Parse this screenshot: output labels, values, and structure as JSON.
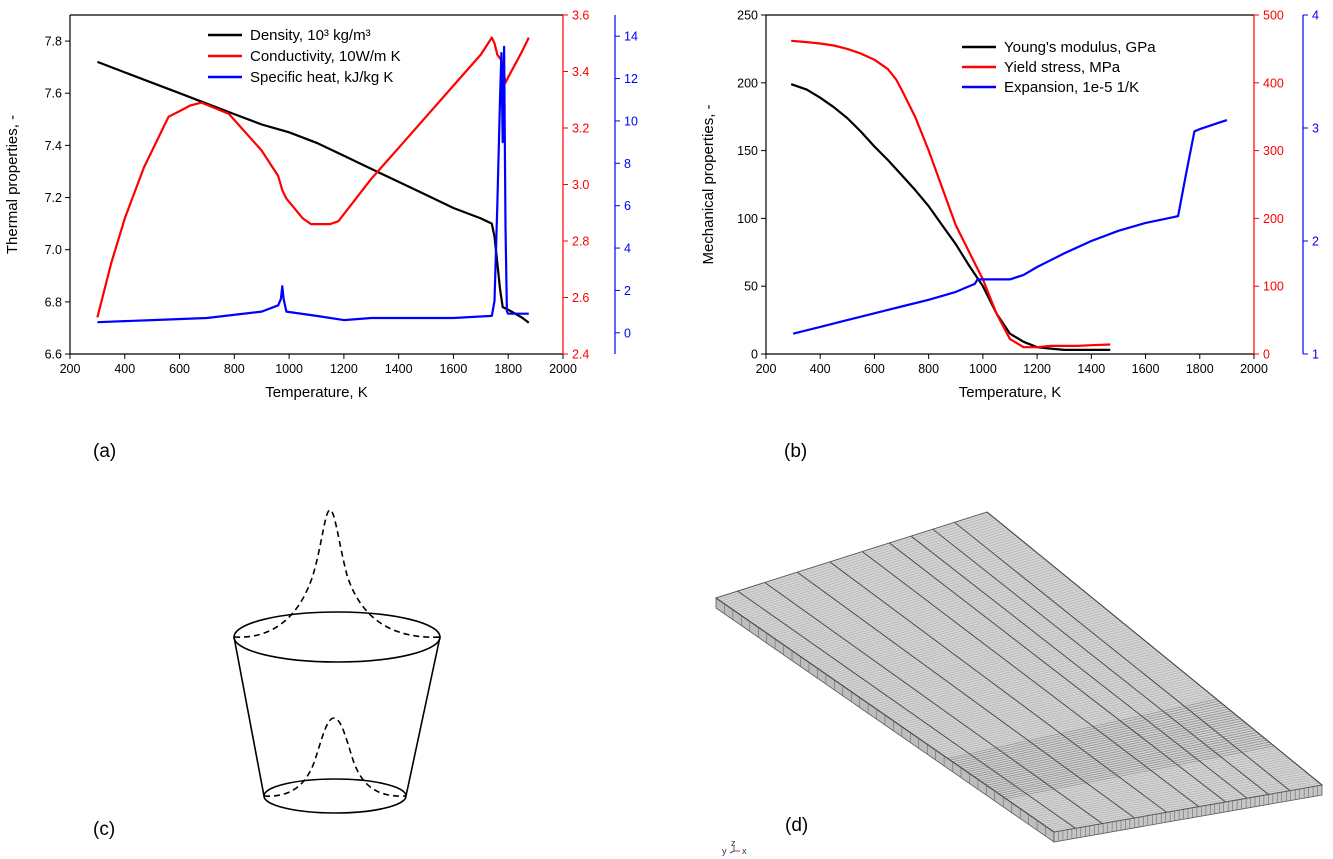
{
  "panels": {
    "a": "(a)",
    "b": "(b)",
    "c": "(c)",
    "d": "(d)"
  },
  "colors": {
    "black": "#000000",
    "red": "#ff0000",
    "blue": "#0000ff",
    "mesh_fill": "#d4d4d4",
    "mesh_line": "#5a5a5a"
  },
  "triad": {
    "y": "y",
    "z": "z",
    "x": "x"
  },
  "chart_data": [
    {
      "id": "a",
      "type": "line",
      "xlabel": "Temperature, K",
      "ylabel": "Thermal properties, -",
      "xlim": [
        200,
        2000
      ],
      "xticks": [
        200,
        400,
        600,
        800,
        1000,
        1200,
        1400,
        1600,
        1800,
        2000
      ],
      "axes": [
        {
          "side": "left",
          "color": "#000000",
          "lim": [
            6.6,
            7.9
          ],
          "ticks": [
            6.6,
            6.8,
            7.0,
            7.2,
            7.4,
            7.6,
            7.8
          ],
          "decimals": 1
        },
        {
          "side": "right",
          "color": "#ff0000",
          "lim": [
            2.4,
            3.6
          ],
          "ticks": [
            2.4,
            2.6,
            2.8,
            3.0,
            3.2,
            3.4,
            3.6
          ],
          "decimals": 1
        },
        {
          "side": "right2",
          "color": "#0000ff",
          "lim": [
            -1,
            15
          ],
          "ticks": [
            0,
            2,
            4,
            6,
            8,
            10,
            12,
            14
          ],
          "decimals": 0
        }
      ],
      "legend": {
        "position": "top-center"
      },
      "series": [
        {
          "name": "Density, 10³ kg/m³",
          "axis": 0,
          "color": "#000000",
          "x": [
            300,
            400,
            500,
            600,
            700,
            800,
            900,
            1000,
            1100,
            1200,
            1300,
            1400,
            1500,
            1600,
            1700,
            1740,
            1750,
            1760,
            1770,
            1780,
            1800,
            1850,
            1875
          ],
          "y": [
            7.72,
            7.68,
            7.64,
            7.6,
            7.56,
            7.52,
            7.48,
            7.45,
            7.41,
            7.36,
            7.31,
            7.26,
            7.21,
            7.16,
            7.12,
            7.1,
            7.05,
            6.95,
            6.85,
            6.78,
            6.77,
            6.74,
            6.72
          ]
        },
        {
          "name": "Conductivity, 10W/m K",
          "axis": 1,
          "color": "#ff0000",
          "x": [
            300,
            350,
            400,
            470,
            560,
            600,
            640,
            680,
            780,
            900,
            960,
            975,
            990,
            1050,
            1080,
            1150,
            1180,
            1300,
            1400,
            1500,
            1600,
            1700,
            1740,
            1750,
            1760,
            1775,
            1790,
            1800,
            1850,
            1875
          ],
          "y": [
            2.53,
            2.72,
            2.88,
            3.06,
            3.24,
            3.26,
            3.28,
            3.29,
            3.25,
            3.12,
            3.03,
            2.98,
            2.95,
            2.88,
            2.86,
            2.86,
            2.87,
            3.02,
            3.13,
            3.24,
            3.35,
            3.46,
            3.52,
            3.5,
            3.46,
            3.44,
            3.36,
            3.38,
            3.47,
            3.52
          ]
        },
        {
          "name": "Specific heat, kJ/kg K",
          "axis": 2,
          "color": "#0000ff",
          "x": [
            300,
            500,
            700,
            900,
            960,
            970,
            975,
            980,
            990,
            1100,
            1200,
            1300,
            1600,
            1740,
            1750,
            1760,
            1770,
            1775,
            1780,
            1785,
            1790,
            1795,
            1800,
            1875
          ],
          "y": [
            0.5,
            0.6,
            0.7,
            1.0,
            1.3,
            1.6,
            2.2,
            1.6,
            1.0,
            0.8,
            0.6,
            0.7,
            0.7,
            0.8,
            1.5,
            6.0,
            11.0,
            13.2,
            9.0,
            13.5,
            5.0,
            1.0,
            0.9,
            0.9
          ]
        }
      ]
    },
    {
      "id": "b",
      "type": "line",
      "xlabel": "Temperature, K",
      "ylabel": "Mechanical properties, -",
      "xlim": [
        200,
        2000
      ],
      "xticks": [
        200,
        400,
        600,
        800,
        1000,
        1200,
        1400,
        1600,
        1800,
        2000
      ],
      "axes": [
        {
          "side": "left",
          "color": "#000000",
          "lim": [
            0,
            250
          ],
          "ticks": [
            0,
            50,
            100,
            150,
            200,
            250
          ],
          "decimals": 0
        },
        {
          "side": "right",
          "color": "#ff0000",
          "lim": [
            0,
            500
          ],
          "ticks": [
            0,
            100,
            200,
            300,
            400,
            500
          ],
          "decimals": 0
        },
        {
          "side": "right2",
          "color": "#0000ff",
          "lim": [
            1,
            4
          ],
          "ticks": [
            1,
            2,
            3,
            4
          ],
          "decimals": 0
        }
      ],
      "legend": {
        "position": "top-right"
      },
      "series": [
        {
          "name": "Young's modulus, GPa",
          "axis": 0,
          "color": "#000000",
          "x": [
            293,
            350,
            400,
            450,
            500,
            550,
            600,
            650,
            700,
            750,
            800,
            850,
            900,
            950,
            1000,
            1050,
            1100,
            1150,
            1200,
            1250,
            1300,
            1350,
            1400,
            1470
          ],
          "y": [
            199,
            195,
            189,
            182,
            174,
            164,
            153,
            143,
            132,
            121,
            109,
            95,
            81,
            65,
            50,
            30,
            15,
            9,
            5,
            4,
            3,
            3,
            3,
            3
          ]
        },
        {
          "name": "Yield stress, MPa",
          "axis": 1,
          "color": "#ff0000",
          "x": [
            293,
            350,
            400,
            450,
            500,
            550,
            600,
            650,
            680,
            700,
            750,
            800,
            850,
            900,
            950,
            1000,
            1050,
            1100,
            1150,
            1200,
            1250,
            1300,
            1350,
            1400,
            1470
          ],
          "y": [
            462,
            460,
            458,
            455,
            450,
            443,
            434,
            420,
            405,
            390,
            350,
            300,
            245,
            190,
            150,
            110,
            60,
            22,
            10,
            10,
            12,
            12,
            12,
            13,
            14
          ]
        },
        {
          "name": "Expansion, 1e-5 1/K",
          "axis": 2,
          "color": "#0000ff",
          "x": [
            300,
            400,
            500,
            600,
            700,
            800,
            900,
            970,
            980,
            1000,
            1100,
            1150,
            1200,
            1250,
            1300,
            1400,
            1500,
            1600,
            1700,
            1720,
            1750,
            1780,
            1800,
            1850,
            1900
          ],
          "y": [
            1.18,
            1.24,
            1.3,
            1.36,
            1.42,
            1.48,
            1.55,
            1.62,
            1.66,
            1.66,
            1.66,
            1.7,
            1.77,
            1.83,
            1.89,
            2.0,
            2.09,
            2.16,
            2.21,
            2.22,
            2.6,
            2.97,
            2.99,
            3.03,
            3.07
          ]
        }
      ]
    }
  ]
}
